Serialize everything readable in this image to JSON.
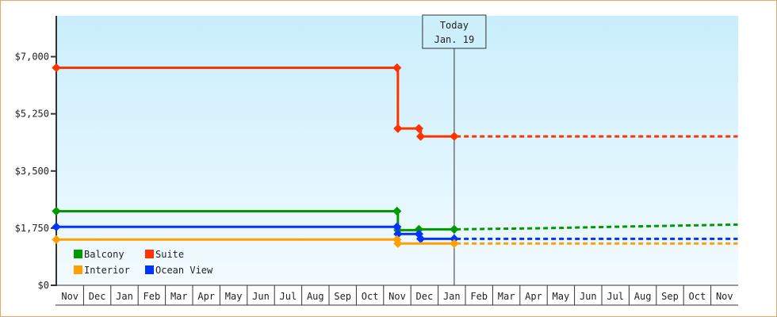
{
  "chart_data": {
    "type": "line",
    "title": "",
    "xlabel": "",
    "ylabel": "",
    "ylim": [
      0,
      8250
    ],
    "y_ticks": [
      0,
      1750,
      3500,
      5250,
      7000
    ],
    "y_tick_labels": [
      "$0",
      "$1,750",
      "$3,500",
      "$5,250",
      "$7,000"
    ],
    "x_tick_labels": [
      "Nov",
      "Dec",
      "Jan",
      "Feb",
      "Mar",
      "Apr",
      "May",
      "Jun",
      "Jul",
      "Aug",
      "Sep",
      "Oct",
      "Nov",
      "Dec",
      "Jan",
      "Feb",
      "Mar",
      "Apr",
      "May",
      "Jun",
      "Jul",
      "Aug",
      "Sep",
      "Oct",
      "Nov"
    ],
    "x_encoding": "points given as month column index into x_tick_labels plus day of month",
    "grid": false,
    "legend_position": "bottom-left",
    "today_marker": {
      "line1": "Today",
      "line2": "Jan. 19",
      "m": 14,
      "d": 19
    },
    "series": [
      {
        "name": "Suite",
        "color": "#ff3300",
        "points": [
          {
            "m": 0,
            "d": 1,
            "y": 6660
          },
          {
            "m": 12,
            "d": 16,
            "y": 6660
          },
          {
            "m": 12,
            "d": 17,
            "y": 4800
          },
          {
            "m": 13,
            "d": 10,
            "y": 4800
          },
          {
            "m": 13,
            "d": 12,
            "y": 4560
          },
          {
            "m": 14,
            "d": 19,
            "y": 4560
          }
        ],
        "forecast": [
          {
            "m": 14,
            "d": 21,
            "y": 4560
          },
          {
            "m": 24,
            "d": 31,
            "y": 4560
          }
        ]
      },
      {
        "name": "Balcony",
        "color": "#009900",
        "points": [
          {
            "m": 0,
            "d": 1,
            "y": 2270
          },
          {
            "m": 12,
            "d": 16,
            "y": 2270
          },
          {
            "m": 12,
            "d": 17,
            "y": 1690
          },
          {
            "m": 13,
            "d": 10,
            "y": 1714
          },
          {
            "m": 14,
            "d": 19,
            "y": 1714
          }
        ],
        "forecast": [
          {
            "m": 14,
            "d": 21,
            "y": 1714
          },
          {
            "m": 18,
            "d": 1,
            "y": 1750
          },
          {
            "m": 21,
            "d": 1,
            "y": 1800
          },
          {
            "m": 24,
            "d": 31,
            "y": 1860
          }
        ]
      },
      {
        "name": "Ocean View",
        "color": "#0033ff",
        "points": [
          {
            "m": 0,
            "d": 1,
            "y": 1790
          },
          {
            "m": 12,
            "d": 16,
            "y": 1790
          },
          {
            "m": 12,
            "d": 17,
            "y": 1570
          },
          {
            "m": 13,
            "d": 10,
            "y": 1570
          },
          {
            "m": 13,
            "d": 12,
            "y": 1424
          },
          {
            "m": 14,
            "d": 19,
            "y": 1424
          }
        ],
        "forecast": [
          {
            "m": 14,
            "d": 21,
            "y": 1424
          },
          {
            "m": 24,
            "d": 31,
            "y": 1424
          }
        ]
      },
      {
        "name": "Interior",
        "color": "#ffa000",
        "points": [
          {
            "m": 0,
            "d": 1,
            "y": 1400
          },
          {
            "m": 12,
            "d": 16,
            "y": 1400
          },
          {
            "m": 12,
            "d": 17,
            "y": 1280
          },
          {
            "m": 14,
            "d": 19,
            "y": 1280
          }
        ],
        "forecast": [
          {
            "m": 14,
            "d": 21,
            "y": 1280
          },
          {
            "m": 24,
            "d": 31,
            "y": 1280
          }
        ]
      }
    ],
    "legend": [
      {
        "name": "Balcony",
        "color": "#009900"
      },
      {
        "name": "Suite",
        "color": "#ff3300"
      },
      {
        "name": "Interior",
        "color": "#ffa000"
      },
      {
        "name": "Ocean View",
        "color": "#0033ff"
      }
    ]
  }
}
